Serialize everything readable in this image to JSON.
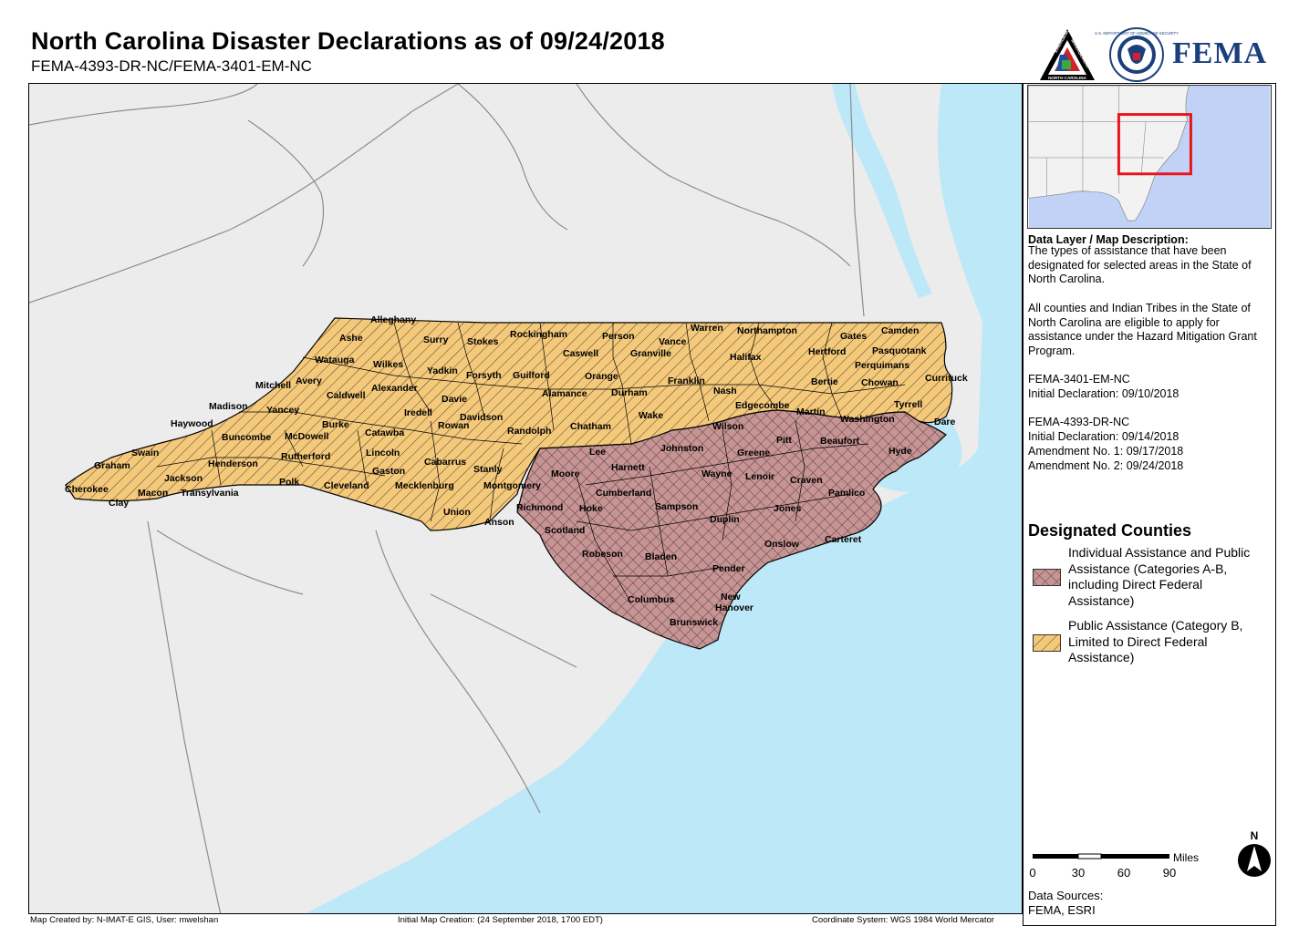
{
  "header": {
    "title": "North Carolina Disaster Declarations as of 09/24/2018",
    "subtitle": "FEMA-4393-DR-NC/FEMA-3401-EM-NC"
  },
  "logos": {
    "nc_em_top": "EMERGENCY",
    "nc_em_right": "MANAGEMENT",
    "nc_em_bottom": "NORTH CAROLINA",
    "dhs_ring": "U.S. DEPARTMENT OF HOMELAND SECURITY",
    "fema": "FEMA"
  },
  "description": {
    "heading": "Data Layer / Map Description:",
    "paragraphs": [
      "The types of assistance that have been designated for selected areas in the State of North Carolina.",
      "All counties and Indian Tribes in the State of North Carolina are eligible to apply for assistance under the Hazard Mitigation Grant Program.",
      "FEMA-3401-EM-NC\nInitial Declaration: 09/10/2018",
      "FEMA-4393-DR-NC\nInitial Declaration: 09/14/2018\nAmendment No. 1: 09/17/2018\nAmendment No. 2: 09/24/2018"
    ]
  },
  "legend": {
    "title": "Designated Counties",
    "items": [
      {
        "label": "Individual Assistance and Public Assistance (Categories A-B, including Direct Federal Assistance)",
        "color": "#c89393"
      },
      {
        "label": "Public Assistance (Category B, Limited to Direct Federal Assistance)",
        "color": "#f5c97a"
      }
    ]
  },
  "scale": {
    "units": "Miles",
    "ticks": [
      "0",
      "30",
      "60",
      "90"
    ]
  },
  "north_label": "N",
  "sources": {
    "label": "Data Sources:",
    "value": "FEMA, ESRI"
  },
  "footer": {
    "created_by": "Map Created by: N-IMAT-E GIS, User: mwelshan",
    "creation": "Initial Map Creation: (24 September 2018, 1700 EDT)",
    "coords": "Coordinate System: WGS 1984 World Mercator"
  },
  "colors": {
    "ia_pa": "#c89393",
    "pa": "#f5c97a",
    "water": "#bde8f8",
    "land": "#ececec",
    "inset_water": "#c2d2f7",
    "inset_highlight": "#e8141c"
  },
  "counties_ia_pa": [
    "Lee",
    "Harnett",
    "Johnston",
    "Wilson",
    "Pitt",
    "Beaufort",
    "Hyde",
    "Moore",
    "Cumberland",
    "Wayne",
    "Greene",
    "Lenoir",
    "Craven",
    "Pamlico",
    "Richmond",
    "Hoke",
    "Sampson",
    "Duplin",
    "Jones",
    "Scotland",
    "Onslow",
    "Carteret",
    "Robeson",
    "Bladen",
    "Pender",
    "Columbus",
    "New Hanover",
    "Brunswick"
  ],
  "counties_pa": [
    "Alleghany",
    "Ashe",
    "Surry",
    "Stokes",
    "Rockingham",
    "Person",
    "Warren",
    "Vance",
    "Northampton",
    "Gates",
    "Camden",
    "Watauga",
    "Wilkes",
    "Yadkin",
    "Forsyth",
    "Caswell",
    "Granville",
    "Halifax",
    "Hertford",
    "Pasquotank",
    "Perquimans",
    "Avery",
    "Alexander",
    "Guilford",
    "Orange",
    "Franklin",
    "Bertie",
    "Chowan",
    "Currituck",
    "Mitchell",
    "Caldwell",
    "Davie",
    "Alamance",
    "Durham",
    "Nash",
    "Tyrrell",
    "Madison",
    "Yancey",
    "Iredell",
    "Davidson",
    "Edgecombe",
    "Martin",
    "Haywood",
    "Burke",
    "Catawba",
    "Rowan",
    "Randolph",
    "Chatham",
    "Wake",
    "Washington",
    "Dare",
    "Buncombe",
    "McDowell",
    "Swain",
    "Rutherford",
    "Lincoln",
    "Cabarrus",
    "Stanly",
    "Graham",
    "Henderson",
    "Gaston",
    "Jackson",
    "Polk",
    "Cleveland",
    "Mecklenburg",
    "Montgomery",
    "Cherokee",
    "Macon",
    "Transylvania",
    "Clay",
    "Union",
    "Anson"
  ]
}
